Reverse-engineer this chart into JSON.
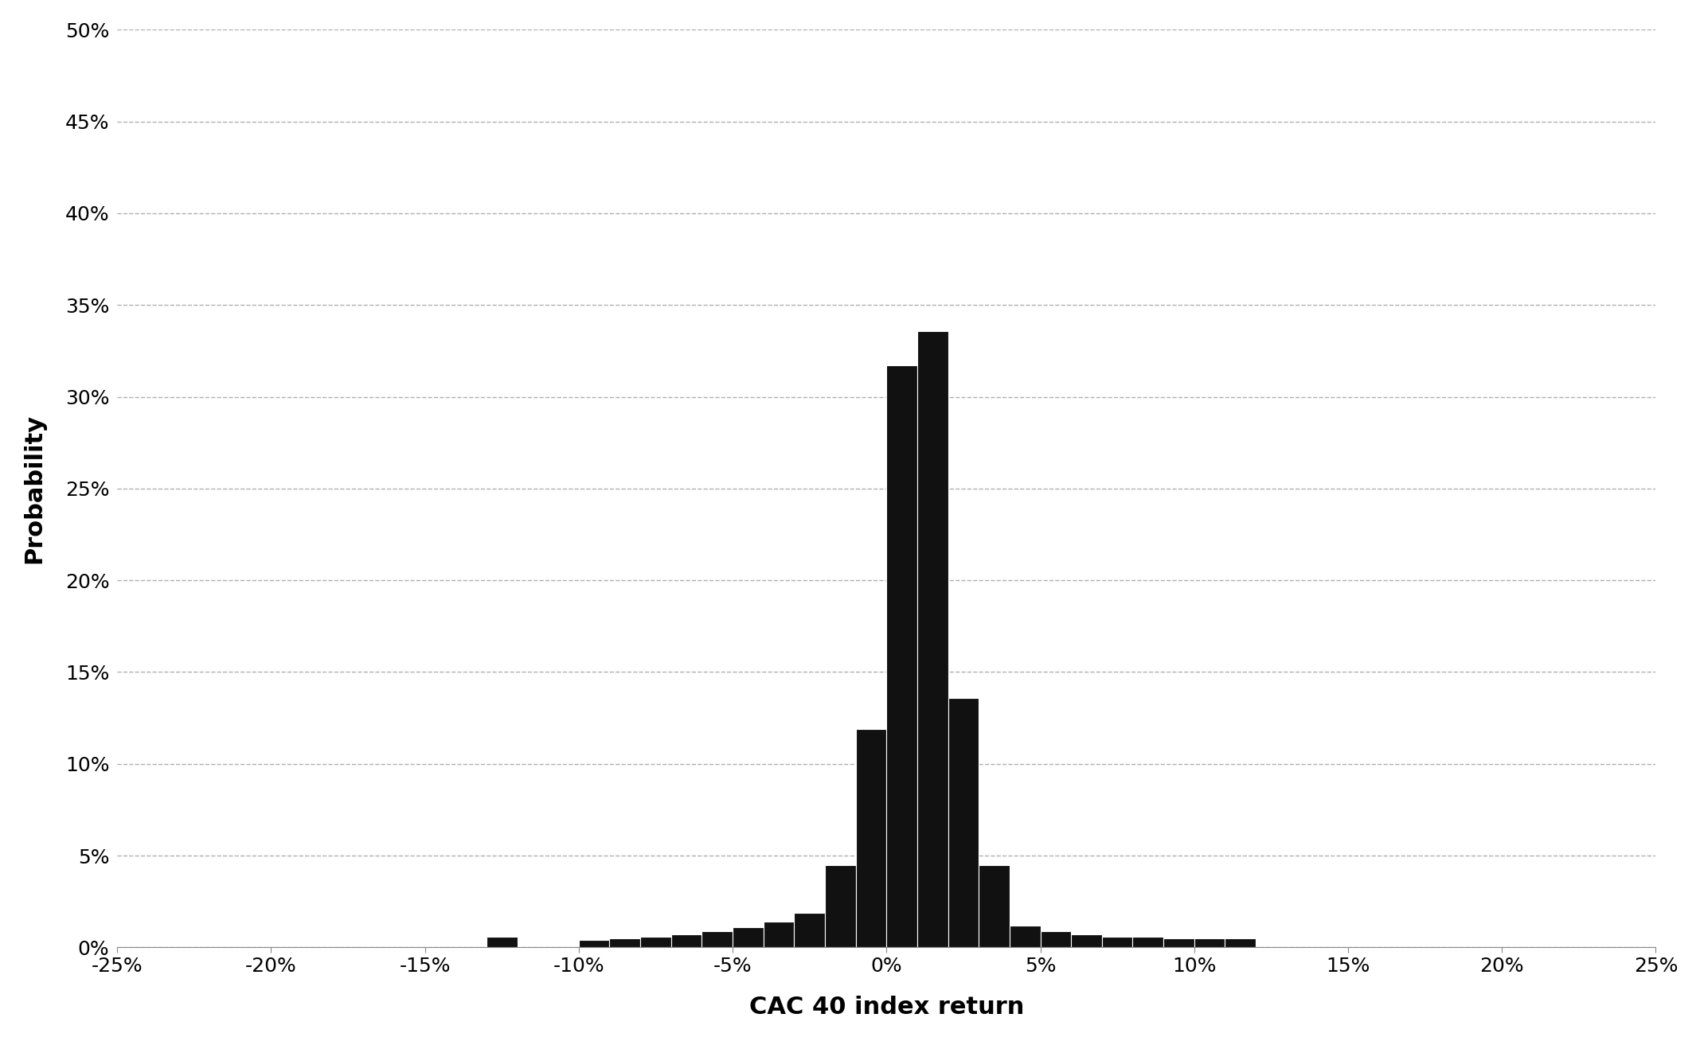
{
  "xlabel": "CAC 40 index return",
  "ylabel": "Probability",
  "background_color": "#ffffff",
  "bar_color": "#111111",
  "bar_edge_color": "#ffffff",
  "xlim": [
    -0.25,
    0.25
  ],
  "ylim": [
    0.0,
    0.5
  ],
  "xtick_values": [
    -0.25,
    -0.2,
    -0.15,
    -0.1,
    -0.05,
    0.0,
    0.05,
    0.1,
    0.15,
    0.2,
    0.25
  ],
  "ytick_values": [
    0.0,
    0.05,
    0.1,
    0.15,
    0.2,
    0.25,
    0.3,
    0.35,
    0.4,
    0.45,
    0.5
  ],
  "grid_linestyle": "--",
  "grid_color": "#b0b0b0",
  "grid_alpha": 1.0,
  "xlabel_fontsize": 22,
  "ylabel_fontsize": 22,
  "tick_fontsize": 18,
  "bin_width": 0.01,
  "bins_left": [
    -0.13,
    -0.1,
    -0.09,
    -0.08,
    -0.07,
    -0.06,
    -0.05,
    -0.04,
    -0.03,
    -0.02,
    -0.01,
    0.0,
    0.01,
    0.02,
    0.03,
    0.04,
    0.05,
    0.06,
    0.07,
    0.08,
    0.09,
    0.1,
    0.11
  ],
  "bar_heights": [
    0.006,
    0.004,
    0.005,
    0.006,
    0.007,
    0.009,
    0.011,
    0.014,
    0.019,
    0.045,
    0.119,
    0.317,
    0.336,
    0.136,
    0.045,
    0.012,
    0.009,
    0.007,
    0.006,
    0.006,
    0.005,
    0.005,
    0.005
  ]
}
